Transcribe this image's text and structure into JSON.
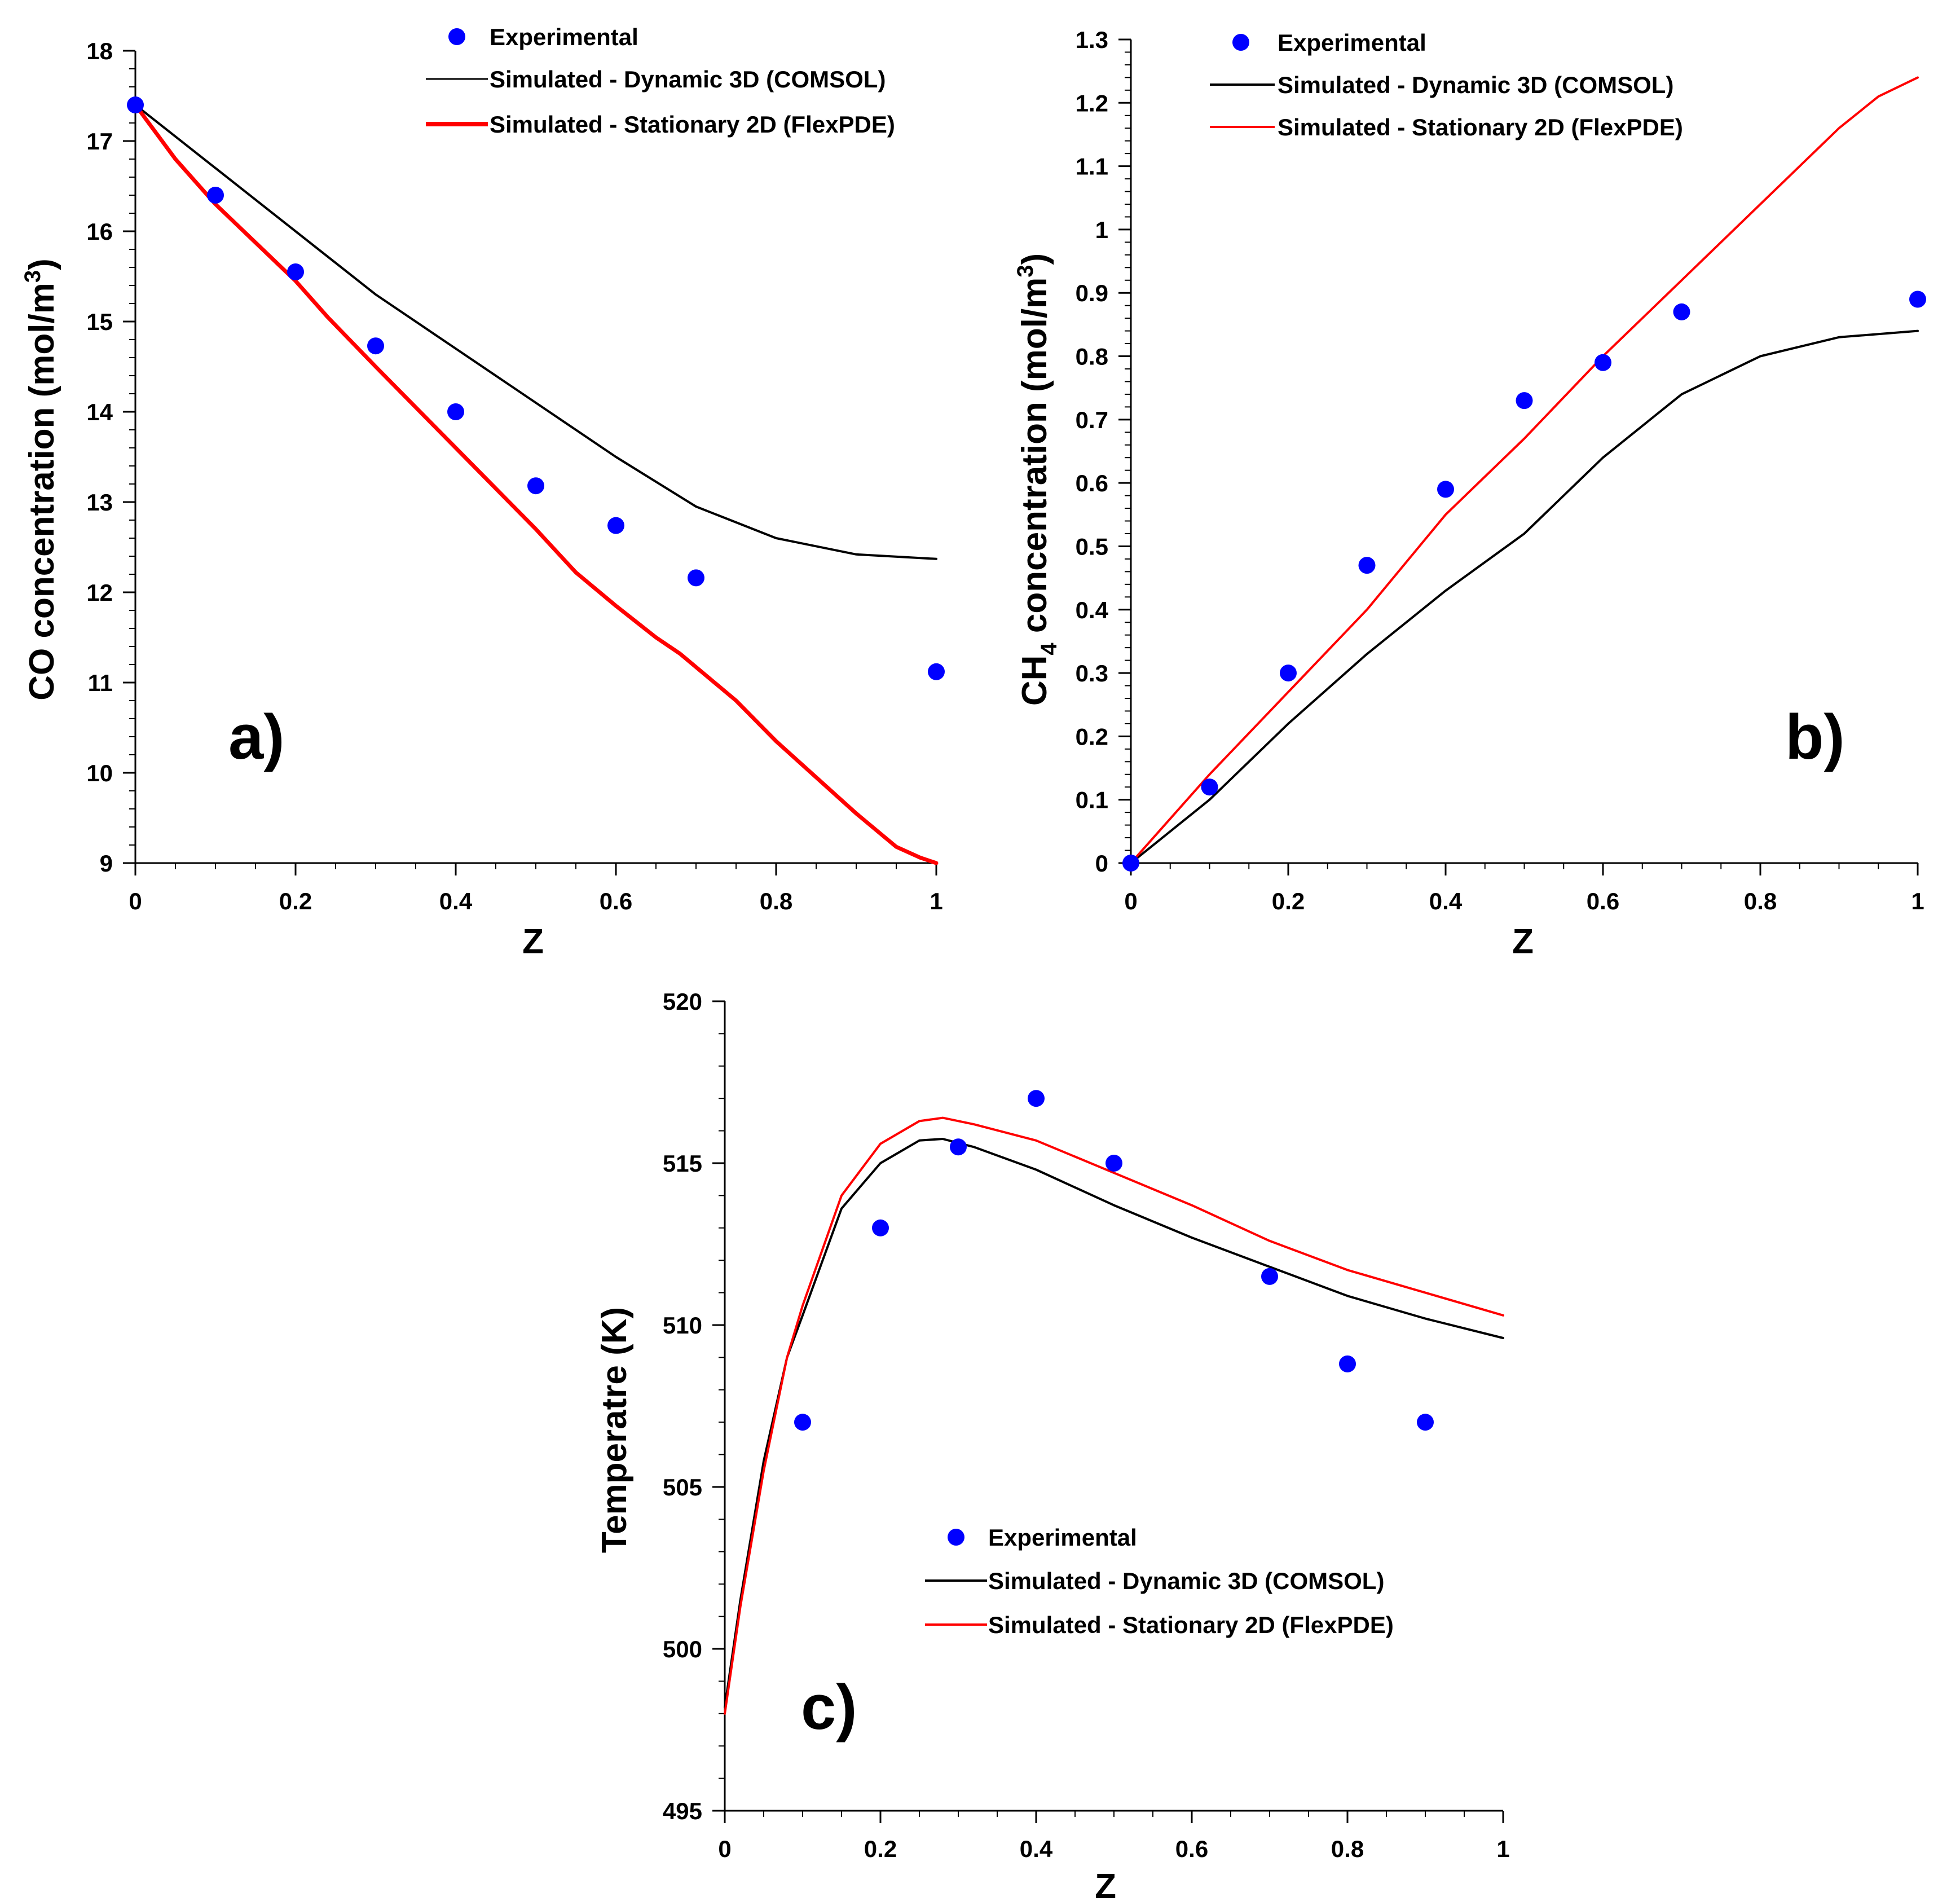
{
  "chart_data": [
    {
      "type": "line",
      "panel_label": "a)",
      "xlabel": "Z",
      "ylabel": "CO concentration (mol/m",
      "ylabel_sup": "3",
      "ylabel_end": ")",
      "xlim": [
        0,
        1
      ],
      "ylim": [
        9,
        18
      ],
      "xticks": [
        0,
        0.2,
        0.4,
        0.6,
        0.8,
        1
      ],
      "xtick_labels": [
        "0",
        "0.2",
        "0.4",
        "0.6",
        "0.8",
        "1"
      ],
      "yticks": [
        9,
        10,
        11,
        12,
        13,
        14,
        15,
        16,
        17,
        18
      ],
      "ytick_labels": [
        "9",
        "10",
        "11",
        "12",
        "13",
        "14",
        "15",
        "16",
        "17",
        "18"
      ],
      "legend_position": "top-right",
      "series": [
        {
          "name": "Experimental",
          "kind": "scatter",
          "color": "#0000ff",
          "x": [
            0,
            0.1,
            0.2,
            0.3,
            0.4,
            0.5,
            0.6,
            0.7,
            1.0
          ],
          "y": [
            17.4,
            16.4,
            15.55,
            14.73,
            14.0,
            13.18,
            12.74,
            12.16,
            11.12
          ]
        },
        {
          "name": "Simulated - Dynamic 3D (COMSOL)",
          "kind": "line",
          "color": "#000000",
          "weight": "thin",
          "x": [
            0,
            0.1,
            0.2,
            0.3,
            0.4,
            0.5,
            0.6,
            0.7,
            0.8,
            0.9,
            1.0
          ],
          "y": [
            17.4,
            16.7,
            16.0,
            15.3,
            14.7,
            14.1,
            13.5,
            12.95,
            12.6,
            12.42,
            12.37
          ]
        },
        {
          "name": "Simulated - Stationary 2D (FlexPDE)",
          "kind": "line",
          "color": "#ff0000",
          "weight": "thick",
          "x": [
            0,
            0.05,
            0.1,
            0.2,
            0.24,
            0.3,
            0.4,
            0.5,
            0.55,
            0.6,
            0.65,
            0.68,
            0.75,
            0.8,
            0.85,
            0.9,
            0.95,
            0.98,
            1.0
          ],
          "y": [
            17.4,
            16.8,
            16.3,
            15.45,
            15.05,
            14.5,
            13.6,
            12.7,
            12.22,
            11.85,
            11.5,
            11.32,
            10.8,
            10.35,
            9.95,
            9.55,
            9.18,
            9.06,
            9.0
          ]
        }
      ]
    },
    {
      "type": "line",
      "panel_label": "b)",
      "xlabel": "Z",
      "ylabel_pre": "CH",
      "ylabel_sub": "4",
      "ylabel": " concentration (mol/m",
      "ylabel_sup": "3",
      "ylabel_end": ")",
      "xlim": [
        0,
        1
      ],
      "ylim": [
        0,
        1.3
      ],
      "xticks": [
        0,
        0.2,
        0.4,
        0.6,
        0.8,
        1
      ],
      "xtick_labels": [
        "0",
        "0.2",
        "0.4",
        "0.6",
        "0.8",
        "1"
      ],
      "yticks": [
        0,
        0.1,
        0.2,
        0.3,
        0.4,
        0.5,
        0.6,
        0.7,
        0.8,
        0.9,
        1,
        1.1,
        1.2,
        1.3
      ],
      "ytick_labels": [
        "0",
        "0.1",
        "0.2",
        "0.3",
        "0.4",
        "0.5",
        "0.6",
        "0.7",
        "0.8",
        "0.9",
        "1",
        "1.1",
        "1.2",
        "1.3"
      ],
      "legend_position": "top-left",
      "series": [
        {
          "name": "Experimental",
          "kind": "scatter",
          "color": "#0000ff",
          "x": [
            0,
            0.1,
            0.2,
            0.3,
            0.4,
            0.5,
            0.6,
            0.7,
            1.0
          ],
          "y": [
            0.0,
            0.12,
            0.3,
            0.47,
            0.59,
            0.73,
            0.79,
            0.87,
            0.89
          ]
        },
        {
          "name": "Simulated - Dynamic 3D (COMSOL)",
          "kind": "line",
          "color": "#000000",
          "weight": "thin",
          "x": [
            0,
            0.1,
            0.2,
            0.3,
            0.4,
            0.5,
            0.6,
            0.7,
            0.8,
            0.9,
            1.0
          ],
          "y": [
            0.0,
            0.1,
            0.22,
            0.33,
            0.43,
            0.52,
            0.64,
            0.74,
            0.8,
            0.83,
            0.84
          ]
        },
        {
          "name": "Simulated - Stationary 2D (FlexPDE)",
          "kind": "line",
          "color": "#ff0000",
          "weight": "thin",
          "x": [
            0,
            0.1,
            0.2,
            0.3,
            0.4,
            0.5,
            0.6,
            0.7,
            0.8,
            0.9,
            0.95,
            1.0
          ],
          "y": [
            0.0,
            0.14,
            0.27,
            0.4,
            0.55,
            0.67,
            0.8,
            0.92,
            1.04,
            1.16,
            1.21,
            1.24
          ]
        }
      ]
    },
    {
      "type": "line",
      "panel_label": "c)",
      "xlabel": "Z",
      "ylabel": "Temperatre (K)",
      "xlim": [
        0,
        1
      ],
      "ylim": [
        495,
        520
      ],
      "xticks": [
        0,
        0.2,
        0.4,
        0.6,
        0.8,
        1
      ],
      "xtick_labels": [
        "0",
        "0.2",
        "0.4",
        "0.6",
        "0.8",
        "1"
      ],
      "yticks": [
        495,
        500,
        505,
        510,
        515,
        520
      ],
      "ytick_labels": [
        "495",
        "500",
        "505",
        "510",
        "515",
        "520"
      ],
      "legend_position": "bottom-center",
      "series": [
        {
          "name": "Experimental",
          "kind": "scatter",
          "color": "#0000ff",
          "x": [
            0.1,
            0.2,
            0.3,
            0.4,
            0.5,
            0.7,
            0.8,
            0.9
          ],
          "y": [
            507.0,
            513.0,
            515.5,
            517.0,
            515.0,
            511.5,
            508.8,
            507.0
          ]
        },
        {
          "name": "Simulated - Dynamic 3D (COMSOL)",
          "kind": "line",
          "color": "#000000",
          "weight": "thin",
          "x": [
            0,
            0.02,
            0.05,
            0.08,
            0.1,
            0.15,
            0.2,
            0.25,
            0.28,
            0.32,
            0.4,
            0.5,
            0.6,
            0.7,
            0.8,
            0.9,
            1.0
          ],
          "y": [
            498.2,
            501.5,
            505.8,
            509.0,
            510.3,
            513.6,
            515.0,
            515.7,
            515.75,
            515.5,
            514.8,
            513.7,
            512.7,
            511.8,
            510.9,
            510.2,
            509.6
          ]
        },
        {
          "name": "Simulated - Stationary 2D (FlexPDE)",
          "kind": "line",
          "color": "#ff0000",
          "weight": "thin",
          "x": [
            0,
            0.02,
            0.05,
            0.08,
            0.1,
            0.15,
            0.2,
            0.25,
            0.28,
            0.32,
            0.4,
            0.5,
            0.6,
            0.7,
            0.8,
            0.9,
            1.0
          ],
          "y": [
            498.0,
            501.3,
            505.5,
            509.0,
            510.6,
            514.0,
            515.6,
            516.3,
            516.4,
            516.2,
            515.7,
            514.7,
            513.7,
            512.6,
            511.7,
            511.0,
            510.3
          ]
        }
      ]
    }
  ]
}
